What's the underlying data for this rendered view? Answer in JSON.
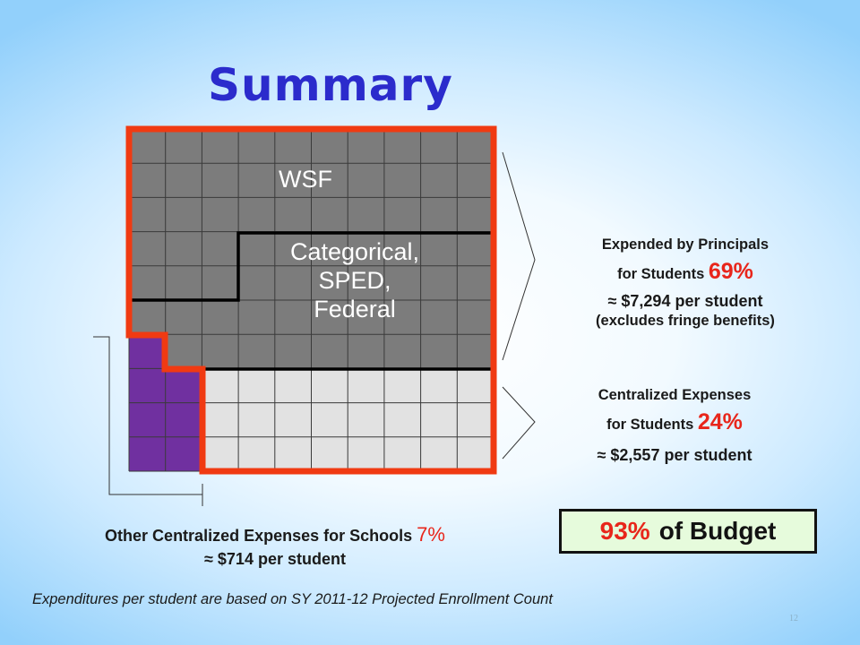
{
  "slide": {
    "title": "Summary",
    "page_number": "12",
    "footnote": "Expenditures per student are based on SY 2011-12 Projected Enrollment Count"
  },
  "grid": {
    "labels": {
      "wsf": "WSF",
      "categorical": [
        "Categorical,",
        "SPED,",
        "Federal"
      ]
    },
    "colors": {
      "wsf_fill": "#7c7c7c",
      "centralized_fill": "#e2e2e2",
      "other_fill": "#7030a0",
      "outline": "#f03a12",
      "grid_line": "#3a3a3a"
    }
  },
  "principals": {
    "line1": "Expended by Principals",
    "line2": "for Students",
    "pct": "69%",
    "per_student": "≈ $7,294 per student",
    "note": "(excludes fringe benefits)"
  },
  "centralized": {
    "line1": "Centralized Expenses",
    "line2": "for Students",
    "pct": "24%",
    "per_student": "≈ $2,557 per student"
  },
  "other": {
    "line1": "Other Centralized Expenses for Schools",
    "pct": "7%",
    "per_student": "≈ $714 per student"
  },
  "budget": {
    "pct": "93%",
    "text": "of Budget"
  }
}
